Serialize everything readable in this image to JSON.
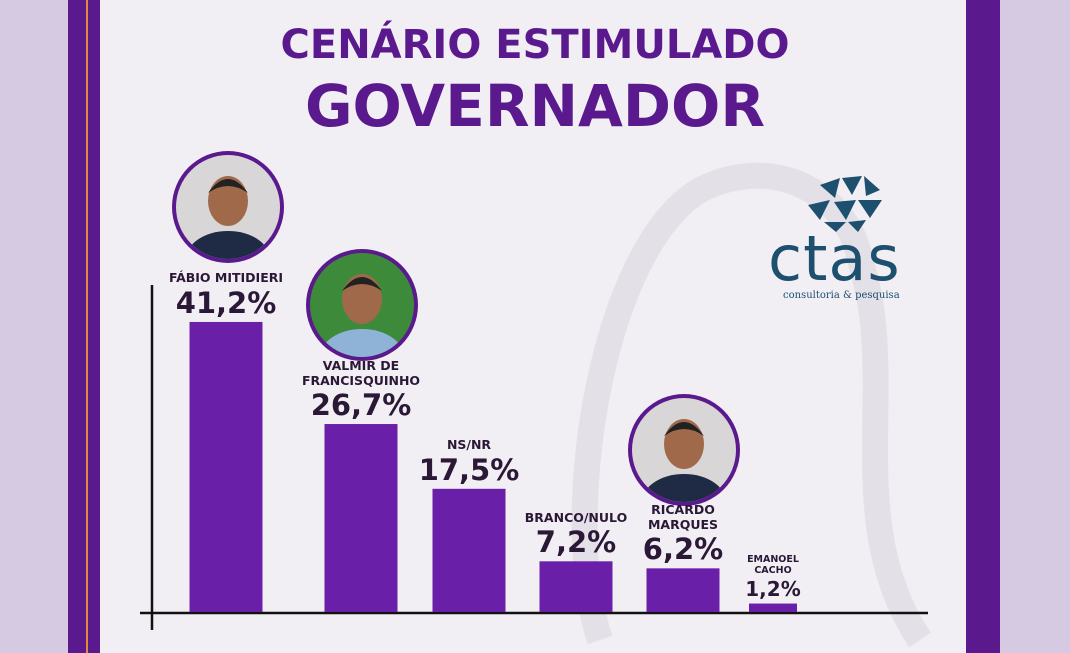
{
  "chart_data": {
    "type": "bar",
    "title": "CENÁRIO ESTIMULADO",
    "subtitle": "GOVERNADOR",
    "categories": [
      "FÁBIO MITIDIERI",
      "VALMIR DE FRANCISQUINHO",
      "NS/NR",
      "BRANCO/NULO",
      "RICARDO MARQUES",
      "EMANOEL CACHO"
    ],
    "values": [
      41.2,
      26.7,
      17.5,
      7.2,
      6.2,
      1.2
    ],
    "value_labels": [
      "41,2%",
      "26,7%",
      "17,5%",
      "7,2%",
      "6,2%",
      "1,2%"
    ],
    "color": "#6a1fa8"
  },
  "logo": {
    "name": "ctas",
    "tagline": "consultoria & pesquisa"
  }
}
